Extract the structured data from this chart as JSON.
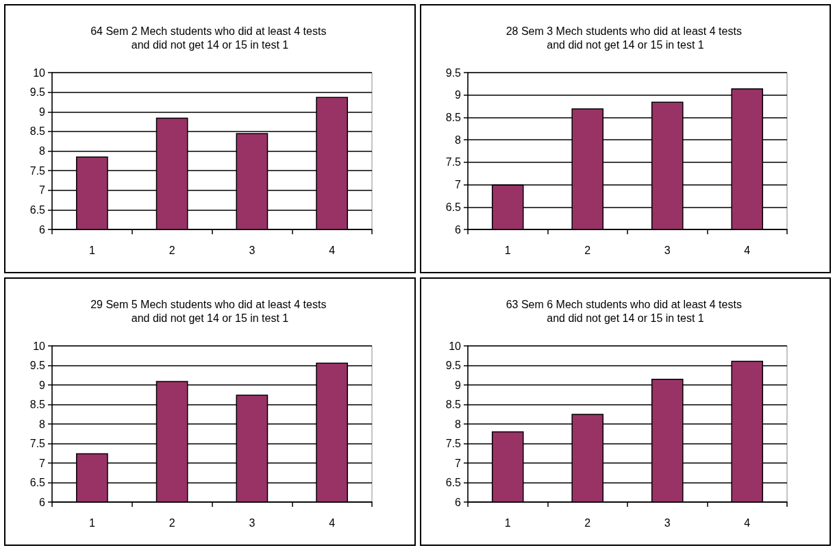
{
  "chart_data": [
    {
      "type": "bar",
      "title": "64 Sem 2 Mech students who did at least 4 tests and did not get 14 or 15 in test 1",
      "categories": [
        "1",
        "2",
        "3",
        "4"
      ],
      "values": [
        7.86,
        8.85,
        8.46,
        9.38
      ],
      "color": "#993366",
      "ylim": [
        6,
        10
      ],
      "yticks": [
        6,
        6.5,
        7,
        7.5,
        8,
        8.5,
        9,
        9.5,
        10
      ],
      "grid": "y"
    },
    {
      "type": "bar",
      "title": "28 Sem 3 Mech students who did at least 4 tests and did not get 14 or 15 in test 1",
      "categories": [
        "1",
        "2",
        "3",
        "4"
      ],
      "values": [
        7.0,
        8.7,
        8.85,
        9.15
      ],
      "color": "#993366",
      "ylim": [
        6,
        9.5
      ],
      "yticks": [
        6,
        6.5,
        7,
        7.5,
        8,
        8.5,
        9,
        9.5
      ],
      "grid": "y"
    },
    {
      "type": "bar",
      "title": "29 Sem 5 Mech students who did at least 4 tests and did not get 14 or 15 in test 1",
      "categories": [
        "1",
        "2",
        "3",
        "4"
      ],
      "values": [
        7.25,
        9.1,
        8.75,
        9.57
      ],
      "color": "#993366",
      "ylim": [
        6,
        10
      ],
      "yticks": [
        6,
        6.5,
        7,
        7.5,
        8,
        8.5,
        9,
        9.5,
        10
      ],
      "grid": "y"
    },
    {
      "type": "bar",
      "title": "63 Sem 6 Mech students who did at least 4 tests and did not get 14 or 15 in test 1",
      "categories": [
        "1",
        "2",
        "3",
        "4"
      ],
      "values": [
        7.81,
        8.26,
        9.16,
        9.62
      ],
      "color": "#993366",
      "ylim": [
        6,
        10
      ],
      "yticks": [
        6,
        6.5,
        7,
        7.5,
        8,
        8.5,
        9,
        9.5,
        10
      ],
      "grid": "y"
    }
  ]
}
